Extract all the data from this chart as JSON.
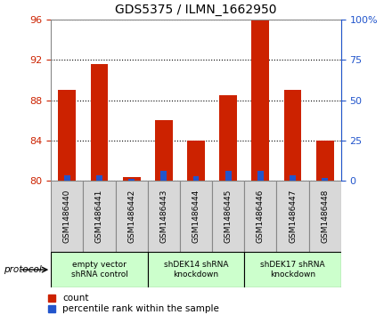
{
  "title": "GDS5375 / ILMN_1662950",
  "samples": [
    "GSM1486440",
    "GSM1486441",
    "GSM1486442",
    "GSM1486443",
    "GSM1486444",
    "GSM1486445",
    "GSM1486446",
    "GSM1486447",
    "GSM1486448"
  ],
  "count_values": [
    89.0,
    91.6,
    80.35,
    86.0,
    84.0,
    88.5,
    95.9,
    89.0,
    84.0
  ],
  "percentile_values": [
    80.55,
    80.55,
    80.2,
    81.0,
    80.5,
    81.0,
    81.0,
    80.55,
    80.3
  ],
  "ymin": 80,
  "ymax": 96,
  "yticks": [
    80,
    84,
    88,
    92,
    96
  ],
  "right_yticks": [
    0,
    25,
    50,
    75,
    100
  ],
  "right_yticklabels": [
    "0",
    "25",
    "50",
    "75",
    "100%"
  ],
  "bar_color_red": "#cc2200",
  "bar_color_blue": "#2255cc",
  "left_tick_color": "#cc2200",
  "right_tick_color": "#2255cc",
  "protocol_groups": [
    {
      "label": "empty vector\nshRNA control",
      "start": 0,
      "end": 2,
      "color": "#ccffcc"
    },
    {
      "label": "shDEK14 shRNA\nknockdown",
      "start": 3,
      "end": 5,
      "color": "#ccffcc"
    },
    {
      "label": "shDEK17 shRNA\nknockdown",
      "start": 6,
      "end": 8,
      "color": "#ccffcc"
    }
  ],
  "legend_count_label": "count",
  "legend_pct_label": "percentile rank within the sample",
  "protocol_label": "protocol",
  "bar_width": 0.55,
  "sample_box_color": "#d8d8d8",
  "sample_box_edge": "#888888"
}
